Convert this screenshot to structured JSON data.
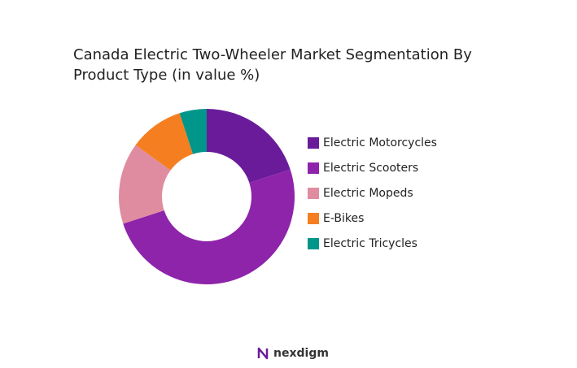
{
  "chart_data": {
    "type": "donut",
    "title": "Canada Electric Two-Wheeler Market Segmentation By Product Type (in value %)",
    "categories": [
      "Electric Motorcycles",
      "Electric Scooters",
      "Electric Mopeds",
      "E-Bikes",
      "Electric Tricycles"
    ],
    "values": [
      20,
      50,
      15,
      10,
      5
    ],
    "colors": [
      "#6a1b9a",
      "#8e24aa",
      "#e08ca0",
      "#f57f20",
      "#00968a"
    ],
    "legend": "right"
  },
  "brand": "nexdigm"
}
